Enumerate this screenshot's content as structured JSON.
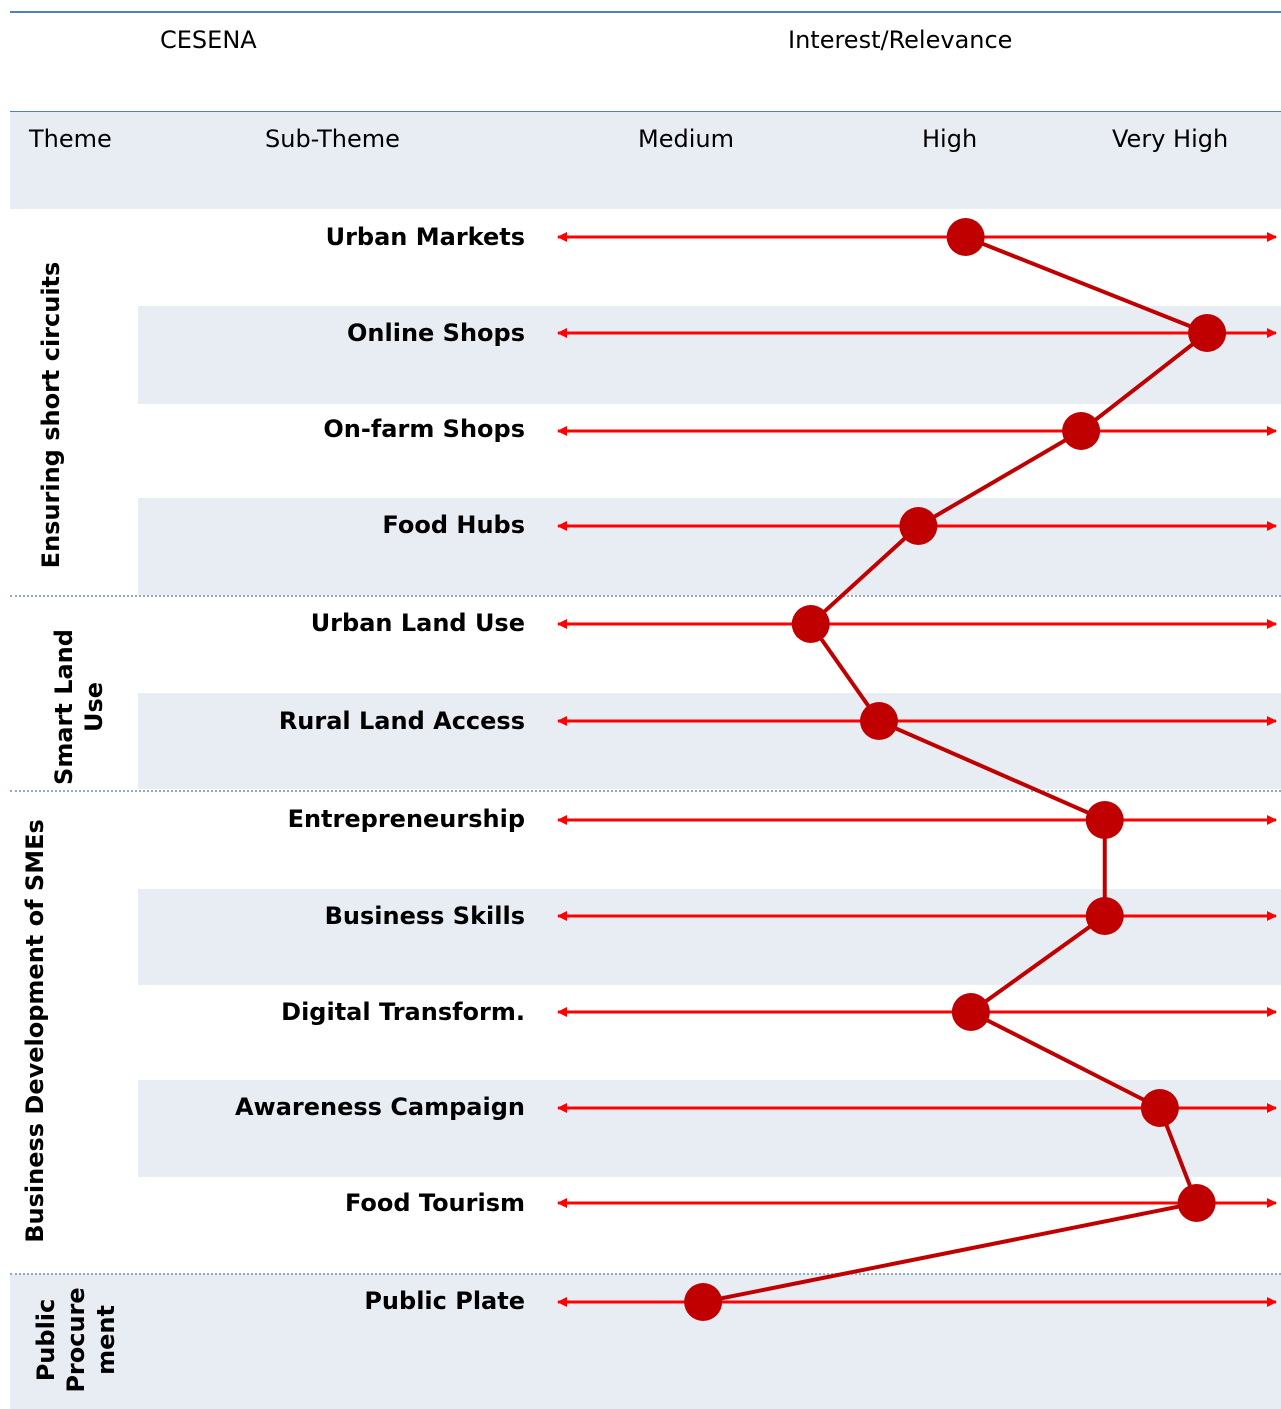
{
  "header": {
    "city": "CESENA",
    "scale_title": "Interest/Relevance",
    "col_theme": "Theme",
    "col_subtheme": "Sub-Theme"
  },
  "colors": {
    "axis_line": "#ff0000",
    "profile_line": "#c00000",
    "marker": "#c00000",
    "band": "#e8ecf3",
    "rule": "#4f81bd"
  },
  "chart_data": {
    "type": "line",
    "x_categories": [
      "Medium",
      "High",
      "Very High"
    ],
    "orientation": "horizontal-profile",
    "themes": [
      {
        "name": "Ensuring short circuits",
        "rows": 4
      },
      {
        "name": "Smart Land Use",
        "rows": 2
      },
      {
        "name": "Business Development of SMEs",
        "rows": 5
      },
      {
        "name": "Public Procurement",
        "rows": 1
      }
    ],
    "rows": [
      {
        "label": "Urban Markets",
        "value": 2.05
      },
      {
        "label": "Online Shops",
        "value": 2.97
      },
      {
        "label": "On-farm Shops",
        "value": 2.49
      },
      {
        "label": "Food Hubs",
        "value": 1.87
      },
      {
        "label": "Urban Land Use",
        "value": 1.46
      },
      {
        "label": "Rural Land Access",
        "value": 1.72
      },
      {
        "label": "Entrepreneurship",
        "value": 2.58
      },
      {
        "label": "Business Skills",
        "value": 2.58
      },
      {
        "label": "Digital Transform.",
        "value": 2.07
      },
      {
        "label": "Awareness Campaign",
        "value": 2.79
      },
      {
        "label": "Food Tourism",
        "value": 2.93
      },
      {
        "label": "Public Plate",
        "value": 1.05
      }
    ]
  }
}
